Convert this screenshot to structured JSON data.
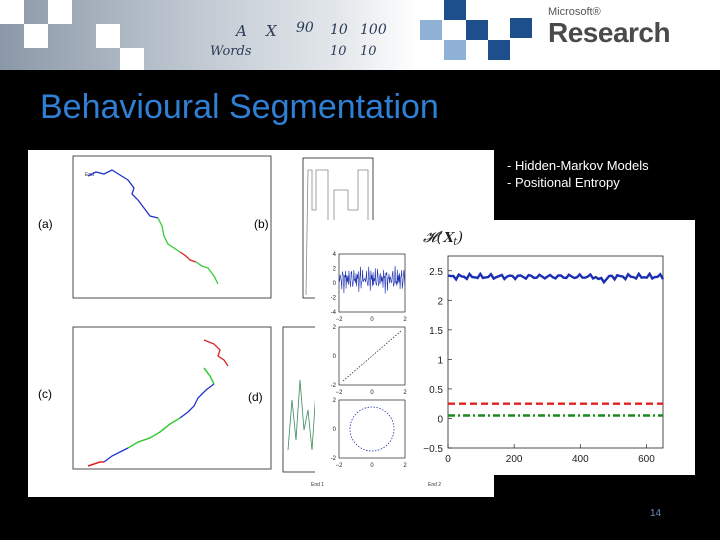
{
  "header": {
    "brand_small": "Microsoft®",
    "brand_big": "Research",
    "handwriting": [
      "A",
      "X",
      "90",
      "10",
      "100",
      "Words",
      "10",
      "10"
    ]
  },
  "slide": {
    "title": "Behavioural Segmentation",
    "bullets": [
      "- Hidden-Markov  Models",
      "- Positional Entropy"
    ],
    "page_number": "14"
  },
  "figure": {
    "panel_labels": [
      "(a)",
      "(b)",
      "(c)",
      "(d)"
    ],
    "start_label_a": "End",
    "entropy_label": "𝓗(𝐗",
    "entropy_subscript": "t",
    "entropy_close": ")",
    "small_labels": [
      "End 1",
      "End 2"
    ],
    "track_colors": [
      "#2233cc",
      "#33cc33",
      "#dd2222"
    ]
  },
  "chart_data": [
    {
      "type": "line",
      "title": "",
      "xlabel": "",
      "ylabel": "",
      "xlim": [
        0,
        650
      ],
      "ylim": [
        -0.5,
        2.75
      ],
      "x_ticks": [
        "0",
        "200",
        "400",
        "600"
      ],
      "y_ticks": [
        "2.5",
        "2",
        "1.5",
        "1",
        "0.5",
        "0",
        "−0.5"
      ],
      "series": [
        {
          "color": "#1a2fb0",
          "style": "solid",
          "x": [
            0,
            650
          ],
          "y": [
            2.4,
            2.4
          ]
        },
        {
          "color": "#e02020",
          "style": "dashed",
          "x": [
            0,
            650
          ],
          "y": [
            0.25,
            0.25
          ]
        },
        {
          "color": "#1a8a1a",
          "style": "dashdot",
          "x": [
            0,
            650
          ],
          "y": [
            0.05,
            0.05
          ]
        }
      ],
      "grid": false
    },
    {
      "type": "line",
      "title": "",
      "ylim": [
        -4,
        4
      ],
      "x_ticks": [
        "−2",
        "0",
        "2"
      ],
      "y_ticks": [
        "4",
        "2",
        "0",
        "-2",
        "-4"
      ],
      "series": [
        {
          "color": "#1a2fb0"
        }
      ]
    },
    {
      "type": "line",
      "title": "",
      "ylim": [
        -2,
        2
      ],
      "x_ticks": [
        "−2",
        "0",
        "2"
      ],
      "y_ticks": [
        "2",
        "0",
        "-2"
      ],
      "series": [
        {
          "color": "#333333",
          "style": "dotted",
          "x": [
            -2,
            2
          ],
          "y": [
            -2,
            2
          ]
        }
      ]
    },
    {
      "type": "scatter",
      "title": "",
      "ylim": [
        -2,
        2
      ],
      "x_ticks": [
        "−2",
        "0",
        "2"
      ],
      "y_ticks": [
        "2",
        "0",
        "-2"
      ],
      "series": [
        {
          "color": "#1a2fb0",
          "shape": "circle"
        }
      ]
    }
  ]
}
